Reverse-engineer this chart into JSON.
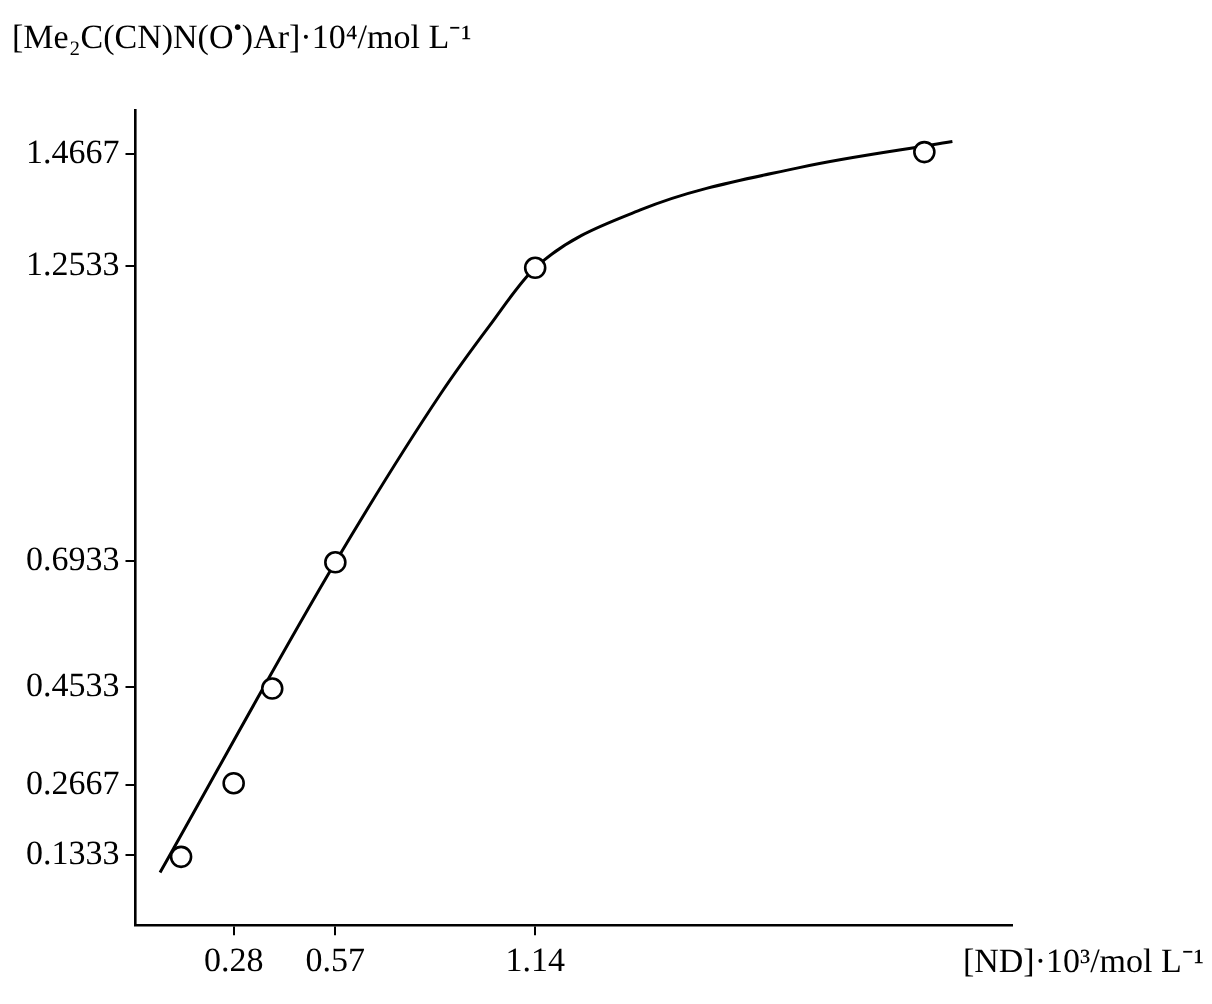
{
  "chart_data": {
    "type": "scatter",
    "ylabel": "[Me₂C(CN)N(O$^{•}$)Ar]·10⁴/mol L⁻¹",
    "xlabel": "[ND]·10³/mol L⁻¹",
    "xlim": [
      0,
      2.5
    ],
    "ylim": [
      0,
      1.55
    ],
    "xticks": [
      0.28,
      0.57,
      1.14
    ],
    "yticks": [
      0.1333,
      0.2667,
      0.4533,
      0.6933,
      1.2533,
      1.4667
    ],
    "grid": false,
    "legend": false,
    "marker": "circle",
    "series": [
      {
        "type": "scatter",
        "color": "#000000",
        "x": [
          0.13,
          0.28,
          0.39,
          0.57,
          1.14,
          2.25
        ],
        "values": [
          0.13,
          0.27,
          0.45,
          0.69,
          1.25,
          1.47
        ]
      },
      {
        "type": "line",
        "color": "#000000",
        "marker": "none",
        "line_style": "solid",
        "x": [
          0.07,
          0.57,
          0.87,
          1.01,
          1.14,
          1.44,
          1.89,
          2.33
        ],
        "values": [
          0.1,
          0.69,
          1.01,
          1.14,
          1.25,
          1.36,
          1.44,
          1.49
        ]
      }
    ]
  }
}
